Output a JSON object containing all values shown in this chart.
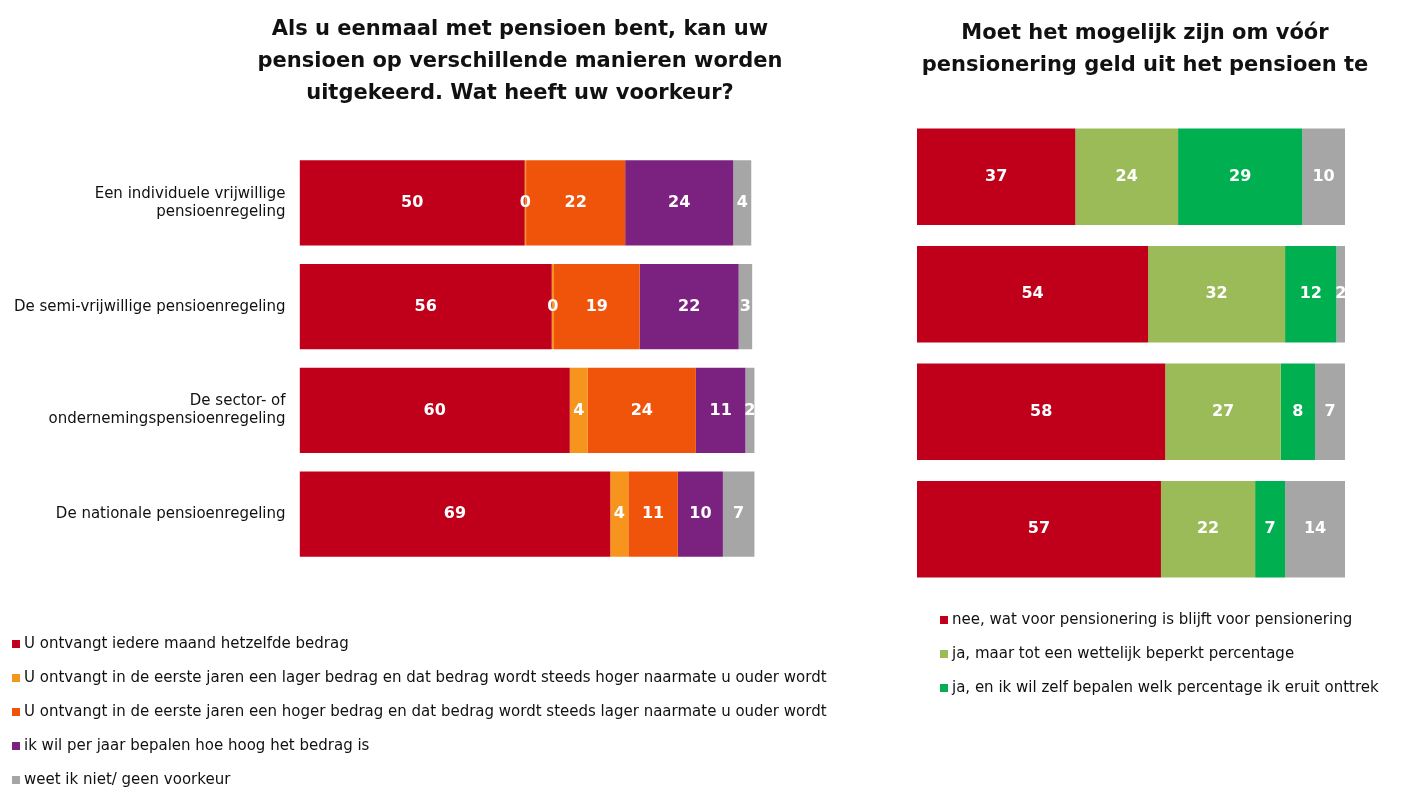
{
  "chart_data": [
    {
      "type": "bar",
      "orientation": "horizontal",
      "stacked": true,
      "title": "Als u eenmaal met pensioen bent, kan uw pensioen op verschillende manieren worden uitgekeerd. Wat heeft uw voorkeur?",
      "categories": [
        "Een individuele vrijwillige pensioenregeling",
        "De semi-vrijwillige pensioenregeling",
        "De sector- of ondernemingspensioenregeling",
        "De nationale pensioenregeling"
      ],
      "series": [
        {
          "name": "U ontvangt iedere maand hetzelfde bedrag",
          "color": "#c0001a",
          "values": [
            50,
            56,
            60,
            69
          ]
        },
        {
          "name": "U ontvangt in de eerste jaren een lager bedrag en dat bedrag wordt steeds hoger naarmate u ouder wordt",
          "color": "#f7941d",
          "values": [
            0.3,
            0.5,
            4,
            4
          ],
          "value_labels": [
            "0",
            "0",
            "4",
            "4"
          ]
        },
        {
          "name": "U ontvangt in de eerste jaren een hoger bedrag en dat bedrag wordt steeds lager naarmate u ouder wordt",
          "color": "#f0540a",
          "values": [
            22,
            19,
            24,
            11
          ]
        },
        {
          "name": "ik wil per jaar bepalen hoe hoog het bedrag is",
          "color": "#7b2281",
          "values": [
            24,
            22,
            11,
            10
          ]
        },
        {
          "name": "weet ik niet/ geen voorkeur",
          "color": "#a6a6a6",
          "values": [
            4,
            3,
            2,
            7
          ]
        }
      ],
      "data_labels": true,
      "grid": false,
      "tick_labels": "y",
      "legend": "bottom"
    },
    {
      "type": "bar",
      "orientation": "horizontal",
      "stacked": true,
      "title": "Moet het mogelijk zijn om vóór pensionering geld uit het pensioen te",
      "categories": [
        null,
        null,
        null,
        null
      ],
      "series": [
        {
          "name": "nee, wat voor pensionering is blijft voor pensionering",
          "color": "#c0001a",
          "values": [
            37,
            54,
            58,
            57
          ]
        },
        {
          "name": "ja, maar tot een wettelijk beperkt percentage",
          "color": "#9bbb59",
          "values": [
            24,
            32,
            27,
            22
          ]
        },
        {
          "name": "ja, en ik wil zelf bepalen welk percentage ik eruit onttrek",
          "color": "#00b050",
          "values": [
            29,
            12,
            8,
            7
          ]
        },
        {
          "color": "#a6a6a6",
          "values": [
            10,
            2,
            7,
            14
          ]
        }
      ],
      "data_labels": true,
      "grid": false,
      "tick_labels": false,
      "legend": "bottom"
    }
  ]
}
